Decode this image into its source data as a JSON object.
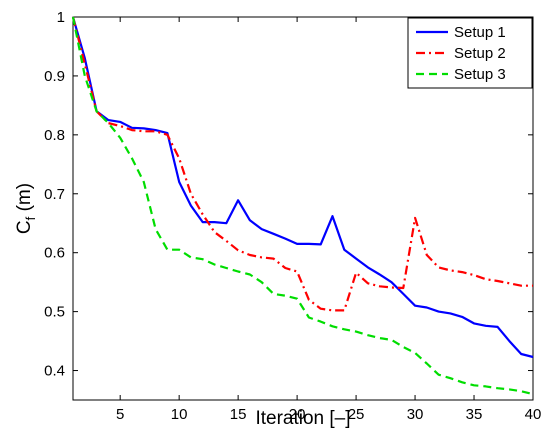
{
  "chart_data": {
    "type": "line",
    "title": "",
    "xlabel": "Iteration [–]",
    "ylabel_main": "C",
    "ylabel_sub": "f",
    "ylabel_tail": " (m)",
    "xlim": [
      1,
      40
    ],
    "ylim": [
      0.35,
      1.0
    ],
    "xticks": [
      5,
      10,
      15,
      20,
      25,
      30,
      35,
      40
    ],
    "yticks": [
      0.4,
      0.5,
      0.6,
      0.7,
      0.8,
      0.9,
      1
    ],
    "grid": false,
    "legend_position": "top-right",
    "series": [
      {
        "name": "Setup 1",
        "color": "#0000ff",
        "style": "solid",
        "x": [
          1,
          2,
          3,
          4,
          5,
          6,
          7,
          8,
          9,
          10,
          11,
          12,
          13,
          14,
          15,
          16,
          17,
          18,
          19,
          20,
          21,
          22,
          23,
          24,
          25,
          26,
          27,
          28,
          29,
          30,
          31,
          32,
          33,
          34,
          35,
          36,
          37,
          38,
          39,
          40
        ],
        "values": [
          1.0,
          0.93,
          0.84,
          0.825,
          0.822,
          0.812,
          0.811,
          0.808,
          0.803,
          0.72,
          0.68,
          0.652,
          0.652,
          0.65,
          0.689,
          0.655,
          0.64,
          0.632,
          0.624,
          0.615,
          0.615,
          0.614,
          0.662,
          0.605,
          0.59,
          0.575,
          0.563,
          0.55,
          0.53,
          0.51,
          0.507,
          0.5,
          0.497,
          0.491,
          0.48,
          0.476,
          0.474,
          0.45,
          0.428,
          0.423
        ]
      },
      {
        "name": "Setup 2",
        "color": "#ff0000",
        "style": "dashdot",
        "x": [
          1,
          2,
          3,
          4,
          5,
          6,
          7,
          8,
          9,
          10,
          11,
          12,
          13,
          14,
          15,
          16,
          17,
          18,
          19,
          20,
          21,
          22,
          23,
          24,
          25,
          26,
          27,
          28,
          29,
          30,
          31,
          32,
          33,
          34,
          35,
          36,
          37,
          38,
          39,
          40
        ],
        "values": [
          1.0,
          0.92,
          0.84,
          0.82,
          0.815,
          0.808,
          0.806,
          0.806,
          0.8,
          0.76,
          0.7,
          0.665,
          0.635,
          0.62,
          0.604,
          0.596,
          0.592,
          0.59,
          0.574,
          0.568,
          0.52,
          0.505,
          0.502,
          0.502,
          0.566,
          0.548,
          0.543,
          0.541,
          0.54,
          0.659,
          0.596,
          0.575,
          0.57,
          0.567,
          0.562,
          0.555,
          0.552,
          0.548,
          0.544,
          0.544
        ]
      },
      {
        "name": "Setup 3",
        "color": "#00dd00",
        "style": "dashed",
        "x": [
          1,
          2,
          3,
          4,
          5,
          6,
          7,
          8,
          9,
          10,
          11,
          12,
          13,
          14,
          15,
          16,
          17,
          18,
          19,
          20,
          21,
          22,
          23,
          24,
          25,
          26,
          27,
          28,
          29,
          30,
          31,
          32,
          33,
          34,
          35,
          36,
          37,
          38,
          39,
          40
        ],
        "values": [
          1.0,
          0.9,
          0.84,
          0.82,
          0.795,
          0.76,
          0.72,
          0.64,
          0.605,
          0.605,
          0.592,
          0.589,
          0.58,
          0.574,
          0.568,
          0.563,
          0.55,
          0.53,
          0.527,
          0.522,
          0.49,
          0.483,
          0.475,
          0.47,
          0.466,
          0.46,
          0.455,
          0.452,
          0.44,
          0.43,
          0.412,
          0.393,
          0.387,
          0.38,
          0.375,
          0.373,
          0.37,
          0.368,
          0.365,
          0.36
        ]
      }
    ]
  }
}
